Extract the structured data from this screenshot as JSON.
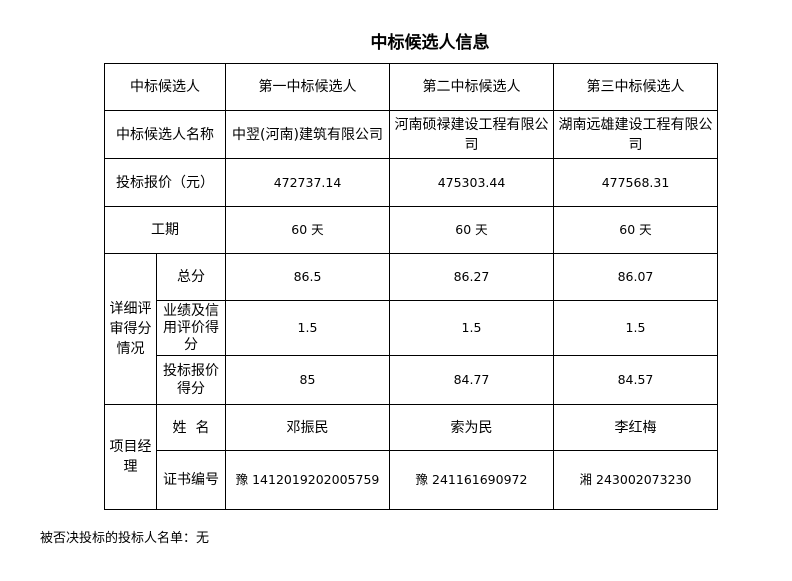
{
  "title": "中标候选人信息",
  "header": {
    "label": "中标候选人",
    "candidates": [
      "第一中标候选人",
      "第二中标候选人",
      "第三中标候选人"
    ]
  },
  "name_row": {
    "label": "中标候选人名称",
    "values": [
      "中翌(河南)建筑有限公司",
      "河南硕禄建设工程有限公司",
      "湖南远雄建设工程有限公司"
    ]
  },
  "price_row": {
    "label": "投标报价（元）",
    "values": [
      "472737.14",
      "475303.44",
      "477568.31"
    ]
  },
  "period_row": {
    "label": "工期",
    "values": [
      "60 天",
      "60 天",
      "60 天"
    ]
  },
  "score_group": {
    "label": "详细评审得分情况",
    "rows": [
      {
        "label": "总分",
        "values": [
          "86.5",
          "86.27",
          "86.07"
        ]
      },
      {
        "label": "业绩及信用评价得分",
        "values": [
          "1.5",
          "1.5",
          "1.5"
        ]
      },
      {
        "label": "投标报价得分",
        "values": [
          "85",
          "84.77",
          "84.57"
        ]
      }
    ]
  },
  "manager_group": {
    "label": "项目经理",
    "rows": [
      {
        "label": "姓  名",
        "values": [
          "邓振民",
          "索为民",
          "李红梅"
        ]
      },
      {
        "label": "证书编号",
        "values": [
          "豫 1412019202005759",
          "豫 241161690972",
          "湘 243002073230"
        ]
      }
    ]
  },
  "footer": "被否决投标的投标人名单：无"
}
